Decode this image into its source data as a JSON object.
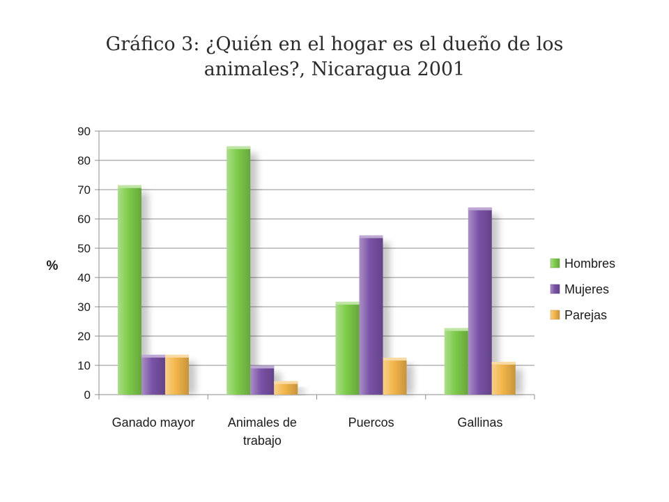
{
  "chart_data": {
    "type": "bar",
    "title_lines": [
      "Gráfico 3: ¿Quién en el hogar es el dueño de los",
      "animales?, Nicaragua 2001"
    ],
    "ylabel": "%",
    "ylim": [
      0,
      90
    ],
    "yticks": [
      0,
      10,
      20,
      30,
      40,
      50,
      60,
      70,
      80,
      90
    ],
    "grid": true,
    "legend_position": "right",
    "categories": [
      [
        "Ganado mayor"
      ],
      [
        "Animales de",
        "trabajo"
      ],
      [
        "Puercos"
      ],
      [
        "Gallinas"
      ]
    ],
    "series": [
      {
        "name": "Hombres",
        "color": "#7ecb4a",
        "values": [
          71.5,
          84.8,
          31.7,
          22.7
        ]
      },
      {
        "name": "Mujeres",
        "color": "#7a52a6",
        "values": [
          13.6,
          9.9,
          54.4,
          63.9
        ]
      },
      {
        "name": "Parejas",
        "color": "#f2b54a",
        "values": [
          13.6,
          4.6,
          12.6,
          11.2
        ]
      }
    ]
  }
}
